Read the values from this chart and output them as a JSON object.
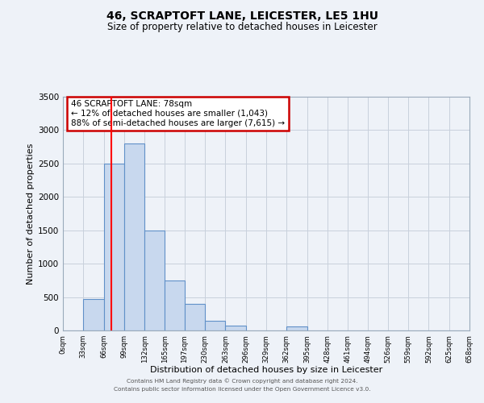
{
  "title": "46, SCRAPTOFT LANE, LEICESTER, LE5 1HU",
  "subtitle": "Size of property relative to detached houses in Leicester",
  "xlabel": "Distribution of detached houses by size in Leicester",
  "ylabel": "Number of detached properties",
  "bar_color": "#c8d8ee",
  "bar_edge_color": "#6090c8",
  "grid_color": "#c8d0dc",
  "background_color": "#eef2f8",
  "plot_bg_color": "#eef2f8",
  "bin_edges": [
    0,
    33,
    66,
    99,
    132,
    165,
    197,
    230,
    263,
    296,
    329,
    362,
    395,
    428,
    461,
    494,
    526,
    559,
    592,
    625,
    658
  ],
  "bin_labels": [
    "0sqm",
    "33sqm",
    "66sqm",
    "99sqm",
    "132sqm",
    "165sqm",
    "197sqm",
    "230sqm",
    "263sqm",
    "296sqm",
    "329sqm",
    "362sqm",
    "395sqm",
    "428sqm",
    "461sqm",
    "494sqm",
    "526sqm",
    "559sqm",
    "592sqm",
    "625sqm",
    "658sqm"
  ],
  "counts": [
    5,
    470,
    2500,
    2800,
    1500,
    750,
    400,
    150,
    75,
    0,
    0,
    60,
    0,
    0,
    0,
    0,
    0,
    0,
    0,
    0
  ],
  "red_line_x": 78,
  "ylim": [
    0,
    3500
  ],
  "yticks": [
    0,
    500,
    1000,
    1500,
    2000,
    2500,
    3000,
    3500
  ],
  "annotation_title": "46 SCRAPTOFT LANE: 78sqm",
  "annotation_line1": "← 12% of detached houses are smaller (1,043)",
  "annotation_line2": "88% of semi-detached houses are larger (7,615) →",
  "annotation_box_color": "#ffffff",
  "annotation_box_edge": "#cc0000",
  "footer1": "Contains HM Land Registry data © Crown copyright and database right 2024.",
  "footer2": "Contains public sector information licensed under the Open Government Licence v3.0."
}
